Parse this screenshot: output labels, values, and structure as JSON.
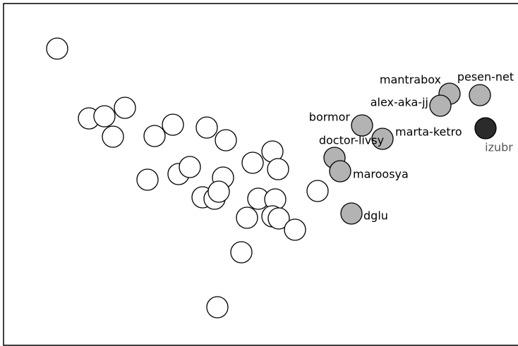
{
  "chart_data": {
    "type": "scatter",
    "xlim": [
      0,
      734
    ],
    "ylim": [
      491,
      0
    ],
    "series": [
      {
        "color": "#ffffff",
        "x": [
          81,
          126,
          148,
          177,
          160,
          219,
          245,
          293,
          320,
          209,
          253,
          269,
          316,
          287,
          304,
          310,
          358,
          386,
          394,
          366,
          390,
          386,
          395,
          350,
          418,
          450,
          342,
          308
        ],
        "y": [
          69,
          168,
          165,
          153,
          194,
          193,
          177,
          181,
          199,
          255,
          247,
          237,
          252,
          280,
          282,
          272,
          231,
          215,
          240,
          282,
          283,
          307,
          310,
          309,
          326,
          271,
          358,
          436
        ]
      },
      {
        "color": "#b3b3b3",
        "labels": [
          "mantrabox",
          "pesen-net",
          "alex-aka-jj",
          "bormor",
          "marta-ketro",
          "doctor-livsy",
          "maroosya",
          "dglu"
        ],
        "x": [
          637,
          680,
          624,
          513,
          542,
          474,
          482,
          498
        ],
        "y": [
          133,
          135,
          150,
          178,
          197,
          224,
          243,
          303
        ]
      },
      {
        "color": "#2b2b2b",
        "labels": [
          "izubr"
        ],
        "x": [
          688
        ],
        "y": [
          182
        ]
      }
    ]
  }
}
